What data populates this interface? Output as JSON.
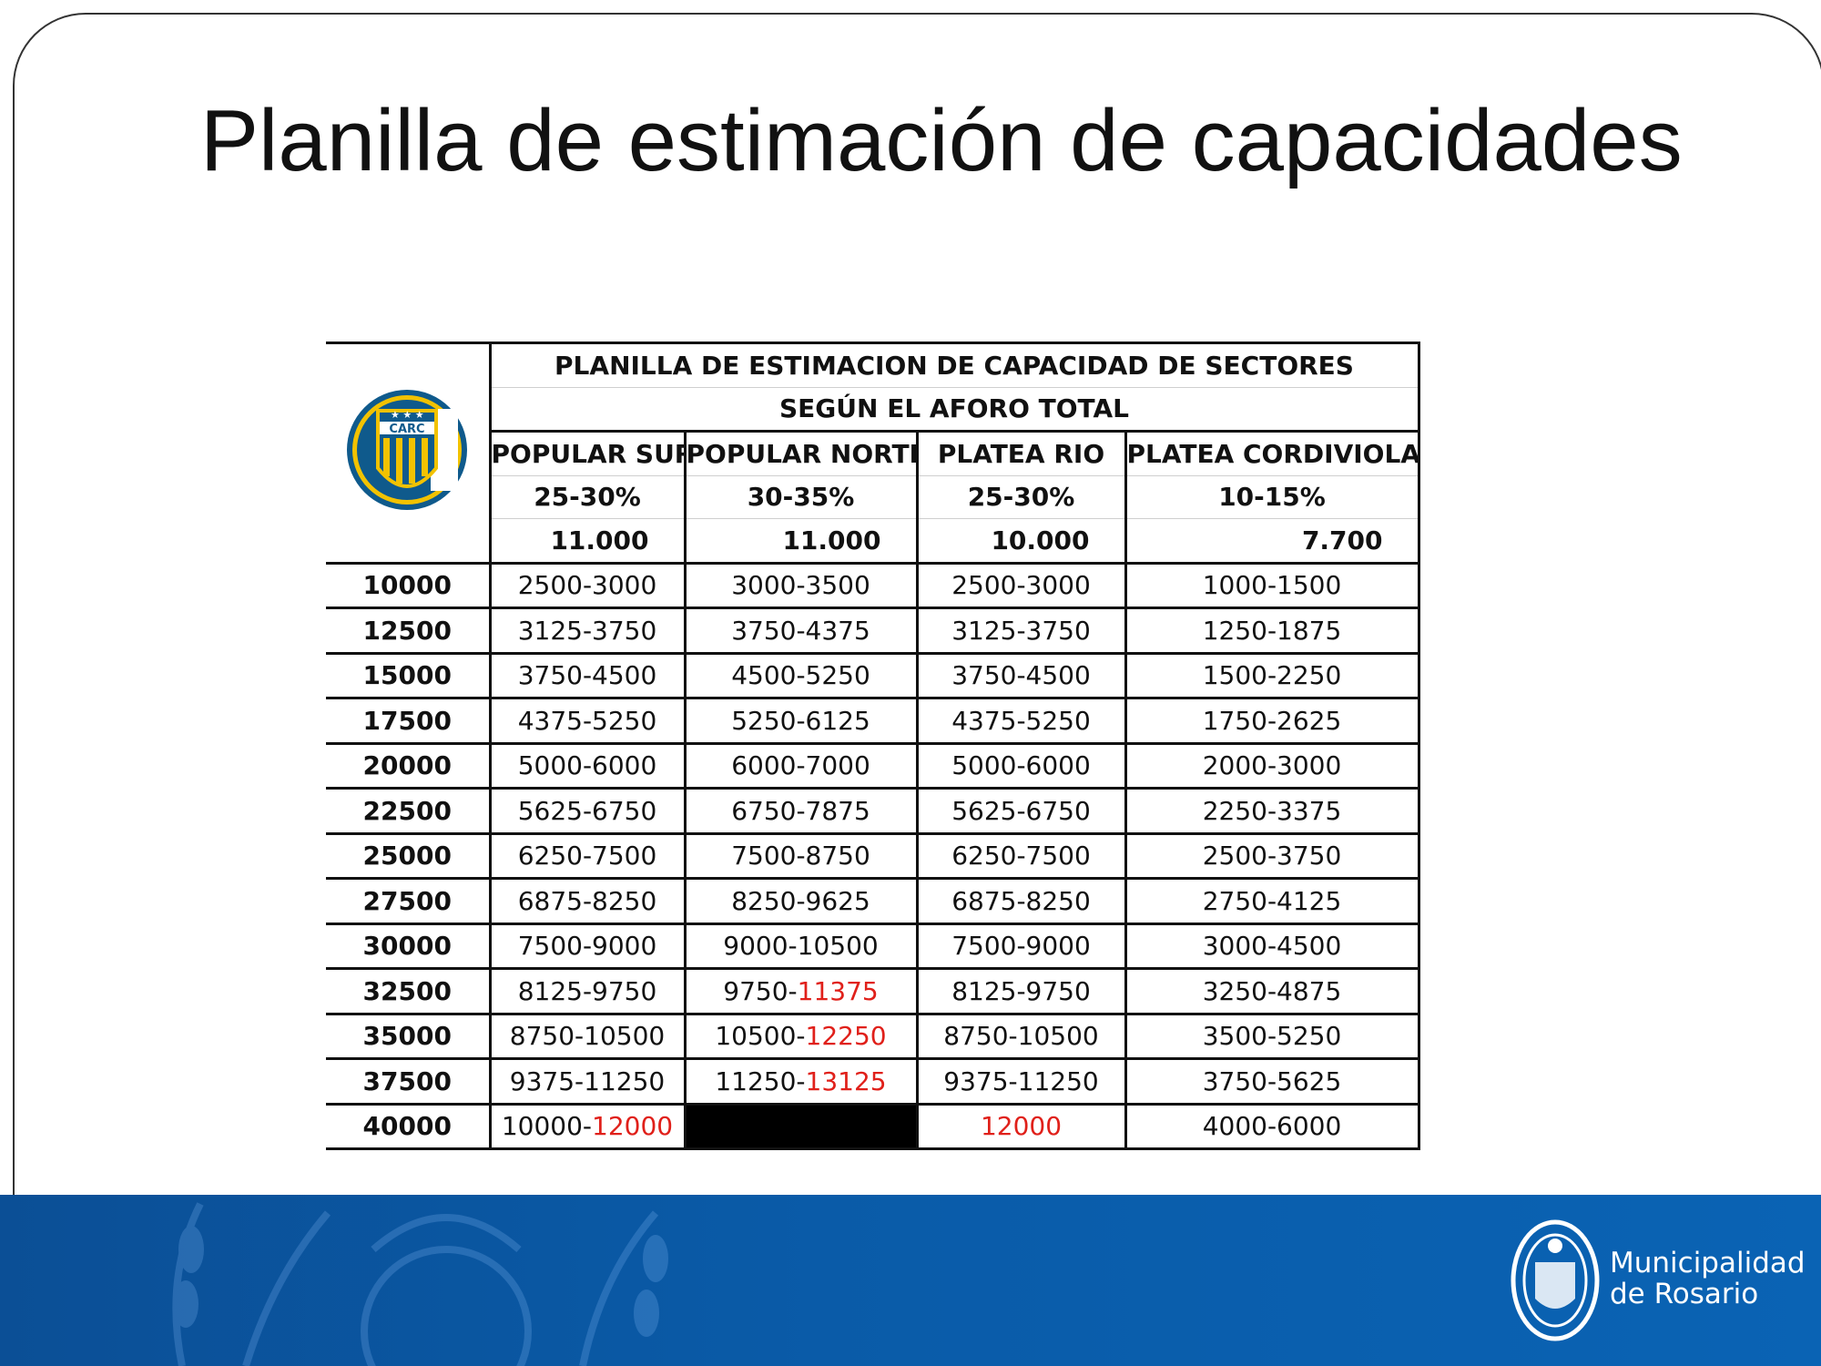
{
  "slide": {
    "title": "Planilla de estimación de capacidades"
  },
  "table": {
    "title_line1": "PLANILLA DE ESTIMACION DE CAPACIDAD DE SECTORES",
    "title_line2": "SEGÚN EL AFORO TOTAL",
    "logo_text": "CARC",
    "columns": [
      {
        "name": "POPULAR SUR",
        "pct": "25-30%",
        "capacity": "11.000"
      },
      {
        "name": "POPULAR NORTE",
        "pct": "30-35%",
        "capacity": "11.000"
      },
      {
        "name": "PLATEA RIO",
        "pct": "25-30%",
        "capacity": "10.000"
      },
      {
        "name": "PLATEA CORDIVIOLA",
        "pct": "10-15%",
        "capacity": "7.700"
      }
    ],
    "rows": [
      {
        "total": "10000",
        "cells": [
          [
            "2500-3000",
            ""
          ],
          [
            "3000-3500",
            ""
          ],
          [
            "2500-3000",
            ""
          ],
          [
            "1000-1500",
            ""
          ]
        ]
      },
      {
        "total": "12500",
        "cells": [
          [
            "3125-3750",
            ""
          ],
          [
            "3750-4375",
            ""
          ],
          [
            "3125-3750",
            ""
          ],
          [
            "1250-1875",
            ""
          ]
        ]
      },
      {
        "total": "15000",
        "cells": [
          [
            "3750-4500",
            ""
          ],
          [
            "4500-5250",
            ""
          ],
          [
            "3750-4500",
            ""
          ],
          [
            "1500-2250",
            ""
          ]
        ]
      },
      {
        "total": "17500",
        "cells": [
          [
            "4375-5250",
            ""
          ],
          [
            "5250-6125",
            ""
          ],
          [
            "4375-5250",
            ""
          ],
          [
            "1750-2625",
            ""
          ]
        ]
      },
      {
        "total": "20000",
        "cells": [
          [
            "5000-6000",
            ""
          ],
          [
            "6000-7000",
            ""
          ],
          [
            "5000-6000",
            ""
          ],
          [
            "2000-3000",
            ""
          ]
        ]
      },
      {
        "total": "22500",
        "cells": [
          [
            "5625-6750",
            ""
          ],
          [
            "6750-7875",
            ""
          ],
          [
            "5625-6750",
            ""
          ],
          [
            "2250-3375",
            ""
          ]
        ]
      },
      {
        "total": "25000",
        "cells": [
          [
            "6250-7500",
            ""
          ],
          [
            "7500-8750",
            ""
          ],
          [
            "6250-7500",
            ""
          ],
          [
            "2500-3750",
            ""
          ]
        ]
      },
      {
        "total": "27500",
        "cells": [
          [
            "6875-8250",
            ""
          ],
          [
            "8250-9625",
            ""
          ],
          [
            "6875-8250",
            ""
          ],
          [
            "2750-4125",
            ""
          ]
        ]
      },
      {
        "total": "30000",
        "cells": [
          [
            "7500-9000",
            ""
          ],
          [
            "9000-10500",
            ""
          ],
          [
            "7500-9000",
            ""
          ],
          [
            "3000-4500",
            ""
          ]
        ]
      },
      {
        "total": "32500",
        "cells": [
          [
            "8125-9750",
            ""
          ],
          [
            "9750-",
            "11375"
          ],
          [
            "8125-9750",
            ""
          ],
          [
            "3250-4875",
            ""
          ]
        ]
      },
      {
        "total": "35000",
        "cells": [
          [
            "8750-10500",
            ""
          ],
          [
            "10500-",
            "12250"
          ],
          [
            "8750-10500",
            ""
          ],
          [
            "3500-5250",
            ""
          ]
        ]
      },
      {
        "total": "37500",
        "cells": [
          [
            "9375-11250",
            ""
          ],
          [
            "11250-",
            "13125"
          ],
          [
            "9375-11250",
            ""
          ],
          [
            "3750-5625",
            ""
          ]
        ]
      },
      {
        "total": "40000",
        "cells": [
          [
            "10000-",
            "12000"
          ],
          [
            "",
            ""
          ],
          [
            "",
            "12000"
          ],
          [
            "4000-6000",
            ""
          ]
        ]
      }
    ],
    "highlight_color": "#e0201a",
    "blacked_out_cell": "40000 / POPULAR NORTE"
  },
  "footer": {
    "brand_line1": "Municipalidad",
    "brand_line2": "de Rosario",
    "background_color": "#0b5aa8"
  }
}
